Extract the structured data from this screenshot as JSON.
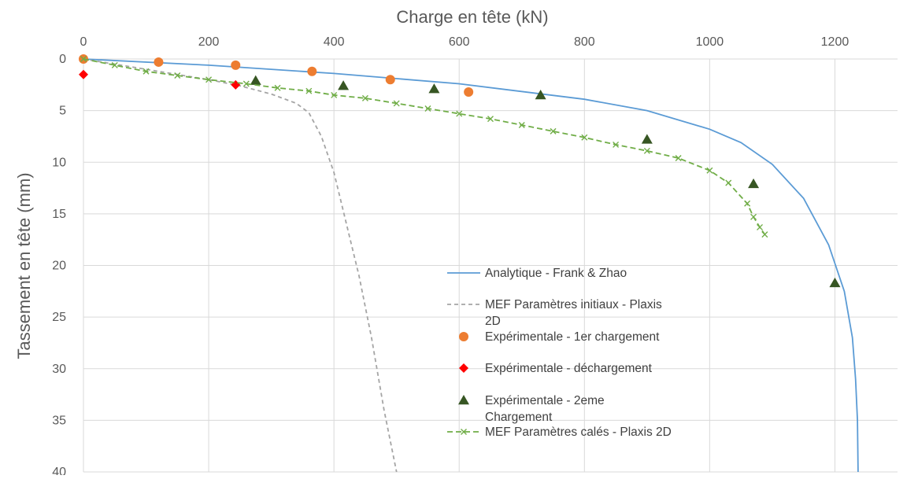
{
  "chart_data": {
    "type": "scatter",
    "xlabel": "Charge en tête  (kN)",
    "ylabel": "Tassement en tête (mm)",
    "xlim": [
      0,
      1300
    ],
    "ylim": [
      0,
      40
    ],
    "x_axis_position": "top",
    "y_axis_reversed": true,
    "x_ticks": [
      "0",
      "200",
      "400",
      "600",
      "800",
      "1000",
      "1200"
    ],
    "y_ticks": [
      "0",
      "5",
      "10",
      "15",
      "20",
      "25",
      "30",
      "35",
      "40"
    ],
    "grid": true,
    "legend_position": "lower-center",
    "series": [
      {
        "name": "Analytique - Frank & Zhao",
        "kind": "line",
        "color": "#5b9bd5",
        "points": [
          [
            0,
            0
          ],
          [
            200,
            0.6
          ],
          [
            400,
            1.4
          ],
          [
            600,
            2.4
          ],
          [
            800,
            3.9
          ],
          [
            900,
            5.0
          ],
          [
            1000,
            6.8
          ],
          [
            1050,
            8.1
          ],
          [
            1100,
            10.2
          ],
          [
            1150,
            13.5
          ],
          [
            1190,
            18.0
          ],
          [
            1215,
            22.5
          ],
          [
            1228,
            27
          ],
          [
            1233,
            31
          ],
          [
            1236,
            35
          ],
          [
            1237,
            40
          ]
        ]
      },
      {
        "name": "MEF Paramètres initiaux - Plaxis 2D",
        "kind": "dashed-line",
        "color": "#a5a5a5",
        "points": [
          [
            0,
            0
          ],
          [
            100,
            1.0
          ],
          [
            200,
            2.0
          ],
          [
            250,
            2.6
          ],
          [
            300,
            3.4
          ],
          [
            340,
            4.3
          ],
          [
            360,
            5.2
          ],
          [
            380,
            7.5
          ],
          [
            400,
            11
          ],
          [
            420,
            16
          ],
          [
            440,
            21
          ],
          [
            460,
            27
          ],
          [
            480,
            34
          ],
          [
            500,
            40
          ]
        ]
      },
      {
        "name": "Expérimentale - 1er chargement",
        "kind": "marker-circle",
        "color": "#ed7d31",
        "points": [
          [
            0,
            0
          ],
          [
            120,
            0.3
          ],
          [
            243,
            0.6
          ],
          [
            365,
            1.2
          ],
          [
            490,
            2.0
          ],
          [
            615,
            3.2
          ]
        ]
      },
      {
        "name": "Expérimentale - déchargement",
        "kind": "marker-diamond",
        "color": "#ff0000",
        "points": [
          [
            0,
            1.5
          ],
          [
            243,
            2.5
          ]
        ]
      },
      {
        "name": "Expérimentale - 2eme Chargement",
        "kind": "marker-triangle",
        "color": "#375623",
        "points": [
          [
            275,
            2.1
          ],
          [
            415,
            2.6
          ],
          [
            560,
            2.9
          ],
          [
            730,
            3.5
          ],
          [
            900,
            7.8
          ],
          [
            1070,
            12.1
          ],
          [
            1200,
            21.7
          ]
        ]
      },
      {
        "name": "MEF Paramètres calés - Plaxis 2D",
        "kind": "dashed-line-x",
        "color": "#70ad47",
        "points": [
          [
            0,
            0
          ],
          [
            50,
            0.6
          ],
          [
            100,
            1.2
          ],
          [
            150,
            1.6
          ],
          [
            200,
            2.0
          ],
          [
            260,
            2.4
          ],
          [
            310,
            2.8
          ],
          [
            360,
            3.1
          ],
          [
            400,
            3.5
          ],
          [
            450,
            3.8
          ],
          [
            500,
            4.3
          ],
          [
            550,
            4.8
          ],
          [
            600,
            5.3
          ],
          [
            650,
            5.8
          ],
          [
            700,
            6.4
          ],
          [
            750,
            7.0
          ],
          [
            800,
            7.6
          ],
          [
            850,
            8.3
          ],
          [
            900,
            8.9
          ],
          [
            950,
            9.6
          ],
          [
            1000,
            10.8
          ],
          [
            1030,
            12.0
          ],
          [
            1060,
            14.0
          ],
          [
            1070,
            15.3
          ],
          [
            1080,
            16.3
          ],
          [
            1088,
            17.0
          ]
        ]
      }
    ]
  }
}
